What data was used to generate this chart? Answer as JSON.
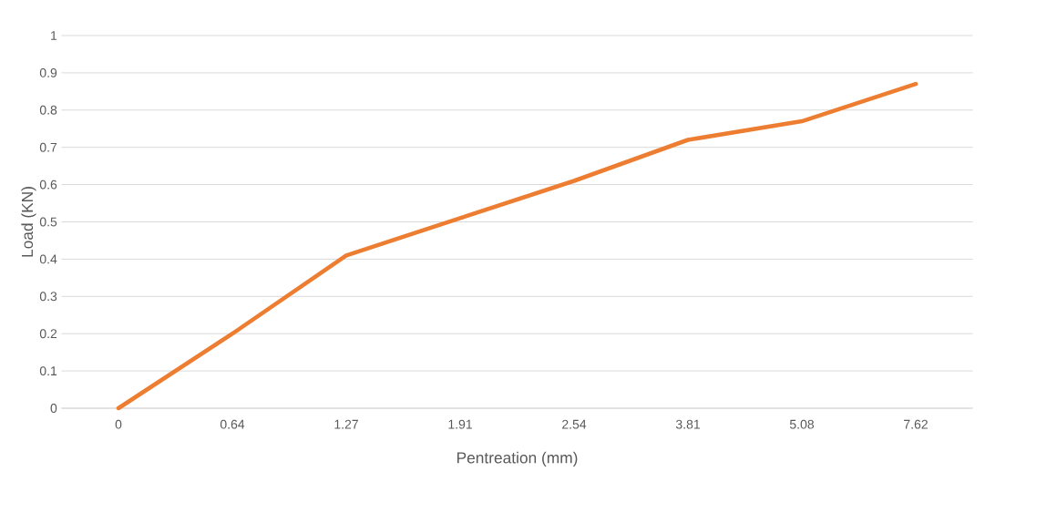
{
  "chart_data": {
    "type": "line",
    "categories": [
      "0",
      "0.64",
      "1.27",
      "1.91",
      "2.54",
      "3.81",
      "5.08",
      "7.62"
    ],
    "values": [
      0,
      0.2,
      0.41,
      0.51,
      0.61,
      0.72,
      0.77,
      0.87
    ],
    "color": "#ed7d31",
    "xlabel": "Pentreation (mm)",
    "ylabel": "Load (KN)",
    "ylim": [
      0,
      1
    ],
    "yticks": [
      0,
      0.1,
      0.2,
      0.3,
      0.4,
      0.5,
      0.6,
      0.7,
      0.8,
      0.9,
      1
    ],
    "grid": "y"
  }
}
